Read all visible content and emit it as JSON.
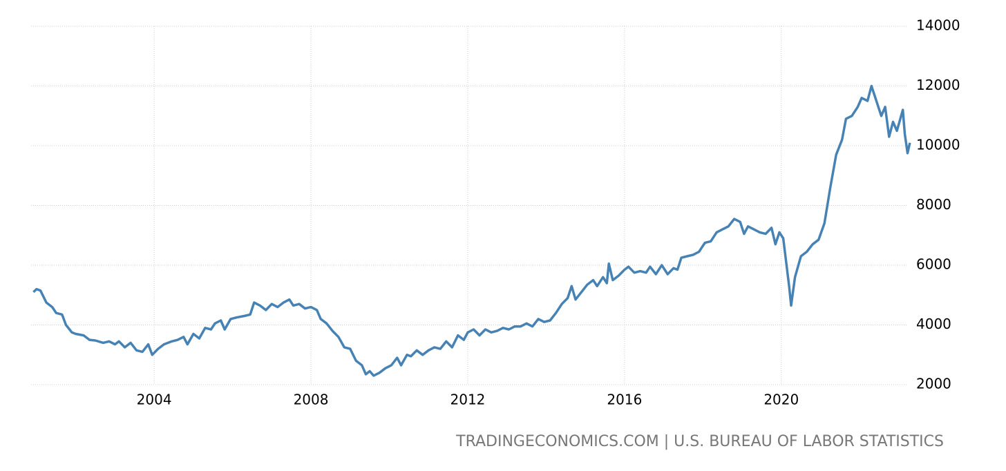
{
  "chart_data": {
    "type": "line",
    "source": "TRADINGECONOMICS.COM | U.S. BUREAU OF LABOR STATISTICS",
    "x": [
      2000.92,
      2001.0,
      2001.1,
      2001.25,
      2001.4,
      2001.5,
      2001.65,
      2001.75,
      2001.9,
      2002.0,
      2002.2,
      2002.35,
      2002.5,
      2002.7,
      2002.85,
      2003.0,
      2003.1,
      2003.25,
      2003.4,
      2003.55,
      2003.7,
      2003.85,
      2003.95,
      2004.1,
      2004.25,
      2004.45,
      2004.6,
      2004.75,
      2004.85,
      2005.0,
      2005.15,
      2005.3,
      2005.45,
      2005.55,
      2005.7,
      2005.8,
      2005.95,
      2006.1,
      2006.3,
      2006.45,
      2006.55,
      2006.7,
      2006.85,
      2007.0,
      2007.15,
      2007.3,
      2007.45,
      2007.55,
      2007.7,
      2007.85,
      2008.0,
      2008.15,
      2008.25,
      2008.4,
      2008.55,
      2008.7,
      2008.85,
      2009.0,
      2009.15,
      2009.3,
      2009.4,
      2009.5,
      2009.6,
      2009.75,
      2009.9,
      2010.05,
      2010.2,
      2010.3,
      2010.45,
      2010.55,
      2010.7,
      2010.85,
      2011.0,
      2011.15,
      2011.3,
      2011.45,
      2011.6,
      2011.75,
      2011.9,
      2012.0,
      2012.15,
      2012.3,
      2012.45,
      2012.6,
      2012.75,
      2012.9,
      2013.05,
      2013.2,
      2013.35,
      2013.5,
      2013.65,
      2013.8,
      2013.95,
      2014.1,
      2014.25,
      2014.4,
      2014.55,
      2014.65,
      2014.75,
      2014.9,
      2015.05,
      2015.2,
      2015.3,
      2015.45,
      2015.55,
      2015.6,
      2015.7,
      2015.85,
      2016.0,
      2016.1,
      2016.25,
      2016.4,
      2016.55,
      2016.65,
      2016.8,
      2016.95,
      2017.1,
      2017.25,
      2017.35,
      2017.45,
      2017.6,
      2017.75,
      2017.9,
      2018.05,
      2018.2,
      2018.35,
      2018.5,
      2018.65,
      2018.8,
      2018.95,
      2019.05,
      2019.15,
      2019.3,
      2019.45,
      2019.6,
      2019.75,
      2019.85,
      2019.95,
      2020.05,
      2020.2,
      2020.25,
      2020.35,
      2020.5,
      2020.65,
      2020.8,
      2020.95,
      2021.1,
      2021.25,
      2021.4,
      2021.55,
      2021.65,
      2021.8,
      2021.95,
      2022.05,
      2022.2,
      2022.3,
      2022.45,
      2022.55,
      2022.65,
      2022.75,
      2022.85,
      2022.95,
      2023.1,
      2023.15,
      2023.22,
      2023.28
    ],
    "series": [
      {
        "color": "#4682b4",
        "values": [
          5100,
          5200,
          5150,
          4750,
          4600,
          4400,
          4350,
          4000,
          3750,
          3700,
          3650,
          3500,
          3480,
          3400,
          3450,
          3350,
          3450,
          3250,
          3400,
          3150,
          3100,
          3350,
          3000,
          3200,
          3350,
          3450,
          3500,
          3600,
          3350,
          3700,
          3550,
          3900,
          3850,
          4050,
          4150,
          3850,
          4200,
          4250,
          4300,
          4350,
          4750,
          4650,
          4500,
          4700,
          4600,
          4750,
          4850,
          4650,
          4700,
          4550,
          4600,
          4500,
          4200,
          4050,
          3800,
          3600,
          3250,
          3200,
          2800,
          2650,
          2350,
          2450,
          2300,
          2400,
          2550,
          2650,
          2900,
          2650,
          3000,
          2950,
          3150,
          3000,
          3150,
          3250,
          3200,
          3450,
          3250,
          3650,
          3500,
          3750,
          3850,
          3650,
          3850,
          3750,
          3800,
          3900,
          3850,
          3950,
          3950,
          4050,
          3950,
          4200,
          4100,
          4150,
          4400,
          4700,
          4900,
          5300,
          4850,
          5100,
          5350,
          5500,
          5300,
          5600,
          5400,
          6050,
          5500,
          5650,
          5850,
          5950,
          5750,
          5800,
          5750,
          5950,
          5700,
          6000,
          5700,
          5900,
          5850,
          6250,
          6300,
          6350,
          6450,
          6750,
          6800,
          7100,
          7200,
          7300,
          7550,
          7450,
          7050,
          7300,
          7200,
          7100,
          7050,
          7250,
          6700,
          7100,
          6900,
          5300,
          4650,
          5600,
          6300,
          6450,
          6700,
          6850,
          7400,
          8600,
          9700,
          10200,
          10900,
          11000,
          11300,
          11600,
          11500,
          12000,
          11400,
          11000,
          11300,
          10300,
          10800,
          10500,
          11200,
          10400,
          9750,
          10100
        ]
      }
    ],
    "xlim": [
      2000.86,
      2023.3
    ],
    "xticks": [
      2004,
      2008,
      2012,
      2016,
      2020
    ],
    "ylim": [
      2000,
      14000
    ],
    "yticks": [
      2000,
      4000,
      6000,
      8000,
      10000,
      12000,
      14000
    ],
    "grid": true
  }
}
